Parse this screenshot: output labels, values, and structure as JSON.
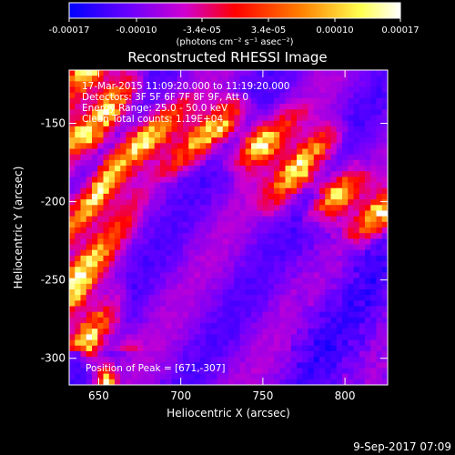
{
  "chart_data": {
    "type": "heatmap",
    "title": "Reconstructed RHESSI Image",
    "xlabel": "Heliocentric X (arcsec)",
    "ylabel": "Heliocentric Y (arcsec)",
    "xlim": [
      632,
      826
    ],
    "ylim": [
      -317,
      -116
    ],
    "x_ticks": [
      650,
      700,
      750,
      800
    ],
    "y_ticks": [
      -300,
      -250,
      -200,
      -150
    ],
    "colorbar": {
      "ticks": [
        "-0.00017",
        "-0.00010",
        "-3.4e-05",
        "3.4e-05",
        "0.00010",
        "0.00017"
      ],
      "unit_label": "(photons cm⁻² s⁻¹ asec⁻²)",
      "range": [
        -0.00017,
        0.00017
      ],
      "colors": [
        "#0000ff",
        "#7a00ff",
        "#d800c8",
        "#ff0000",
        "#ff7a00",
        "#ffff66",
        "#ffffff"
      ]
    },
    "annotations": [
      "17-Mar-2015 11:09:20.000 to 11:19:20.000",
      "Detectors: 3F 5F 6F 7F 8F 9F, Att 0",
      "Energy Range: 25.0 - 50.0 keV",
      "Clean      Total counts: 1.19E+04"
    ],
    "peak_label": "Position of Peak = [671,-307]",
    "footer_date": "9-Sep-2017 07:09"
  }
}
